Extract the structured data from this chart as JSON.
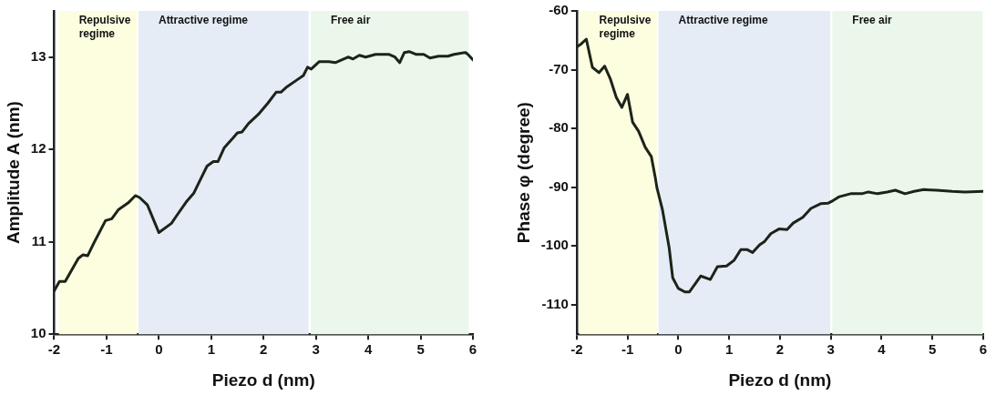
{
  "chart_data": [
    {
      "type": "line",
      "xlabel": "Piezo d (nm)",
      "ylabel": "Amplitude A (nm)",
      "xlim": [
        -2,
        6
      ],
      "xticks": [
        -2,
        -1,
        0,
        1,
        2,
        3,
        4,
        5,
        6
      ],
      "ylim": [
        10,
        13.5
      ],
      "yticks": [
        10,
        11,
        12,
        13
      ],
      "grid": false,
      "legend": false,
      "marker": "none",
      "line_style": "solid",
      "bands": [
        {
          "axis": "x",
          "from": -1.91,
          "to": -0.42,
          "label": "Repulsive regime",
          "color": "#fdfde0"
        },
        {
          "axis": "x",
          "from": -0.39,
          "to": 2.86,
          "label": "Attractive regime",
          "color": "#e5ecf6"
        },
        {
          "axis": "x",
          "from": 2.9,
          "to": 5.92,
          "label": "Free air",
          "color": "#ebf7ea"
        }
      ],
      "series": [
        {
          "color": "#1c2419",
          "x": [
            -2,
            -1.9,
            -1.79,
            -1.54,
            -1.45,
            -1.36,
            -1.23,
            -1.02,
            -0.9,
            -0.77,
            -0.59,
            -0.45,
            -0.37,
            -0.22,
            0,
            0.24,
            0.36,
            0.52,
            0.67,
            0.79,
            0.92,
            1.04,
            1.13,
            1.25,
            1.41,
            1.5,
            1.59,
            1.71,
            1.9,
            2.08,
            2.24,
            2.33,
            2.45,
            2.63,
            2.76,
            2.84,
            2.91,
            3.06,
            3.25,
            3.37,
            3.62,
            3.71,
            3.83,
            3.95,
            4.14,
            4.39,
            4.51,
            4.6,
            4.69,
            4.78,
            4.91,
            5.06,
            5.18,
            5.34,
            5.52,
            5.64,
            5.86,
            5.92,
            6
          ],
          "values": [
            10.47,
            10.57,
            10.57,
            10.82,
            10.86,
            10.85,
            11.0,
            11.23,
            11.25,
            11.35,
            11.42,
            11.5,
            11.48,
            11.4,
            11.1,
            11.2,
            11.3,
            11.43,
            11.53,
            11.67,
            11.82,
            11.87,
            11.87,
            12.02,
            12.12,
            12.18,
            12.19,
            12.28,
            12.38,
            12.5,
            12.62,
            12.62,
            12.68,
            12.75,
            12.8,
            12.89,
            12.87,
            12.95,
            12.95,
            12.94,
            13.0,
            12.98,
            13.02,
            13.0,
            13.03,
            13.03,
            13.0,
            12.94,
            13.05,
            13.06,
            13.03,
            13.03,
            12.99,
            13.01,
            13.01,
            13.03,
            13.05,
            13.02,
            12.97
          ]
        }
      ]
    },
    {
      "type": "line",
      "xlabel": "Piezo d (nm)",
      "ylabel": "Phase φ (degree)",
      "xlim": [
        -2,
        6
      ],
      "xticks": [
        -2,
        -1,
        0,
        1,
        2,
        3,
        4,
        5,
        6
      ],
      "ylim": [
        -115,
        -60
      ],
      "yticks": [
        -110,
        -100,
        -90,
        -80,
        -70,
        -60
      ],
      "grid": false,
      "legend": false,
      "marker": "none",
      "line_style": "solid",
      "bands": [
        {
          "axis": "x",
          "from": -1.95,
          "to": -0.42,
          "label": "Repulsive regime",
          "color": "#fdfde0"
        },
        {
          "axis": "x",
          "from": -0.39,
          "to": 2.99,
          "label": "Attractive regime",
          "color": "#e5ecf6"
        },
        {
          "axis": "x",
          "from": 3.03,
          "to": 5.99,
          "label": "Free air",
          "color": "#ebf7ea"
        }
      ],
      "series": [
        {
          "color": "#1c2419",
          "x": [
            -1.99,
            -1.91,
            -1.81,
            -1.69,
            -1.56,
            -1.45,
            -1.34,
            -1.22,
            -1.11,
            -1.0,
            -0.9,
            -0.78,
            -0.65,
            -0.53,
            -0.45,
            -0.42,
            -0.31,
            -0.18,
            -0.11,
            0,
            0.13,
            0.22,
            0.44,
            0.63,
            0.77,
            0.95,
            1.1,
            1.23,
            1.35,
            1.46,
            1.6,
            1.7,
            1.82,
            1.98,
            2.14,
            2.26,
            2.45,
            2.61,
            2.8,
            2.95,
            3.04,
            3.17,
            3.39,
            3.61,
            3.74,
            3.92,
            4.11,
            4.27,
            4.46,
            4.64,
            4.83,
            5.08,
            5.39,
            5.64,
            5.99
          ],
          "values": [
            -66.1,
            -65.6,
            -64.8,
            -69.6,
            -70.5,
            -69.4,
            -71.5,
            -74.7,
            -76.4,
            -74.2,
            -78.9,
            -80.5,
            -83.2,
            -84.8,
            -88.5,
            -90.1,
            -93.9,
            -100.3,
            -105.4,
            -107.2,
            -107.8,
            -107.8,
            -105.1,
            -105.7,
            -103.5,
            -103.4,
            -102.4,
            -100.6,
            -100.6,
            -101.1,
            -99.8,
            -99.2,
            -97.9,
            -97.1,
            -97.2,
            -96.1,
            -95.1,
            -93.6,
            -92.8,
            -92.7,
            -92.3,
            -91.6,
            -91.1,
            -91.1,
            -90.8,
            -91.1,
            -90.8,
            -90.5,
            -91.1,
            -90.7,
            -90.4,
            -90.5,
            -90.7,
            -90.8,
            -90.7
          ]
        }
      ]
    }
  ]
}
